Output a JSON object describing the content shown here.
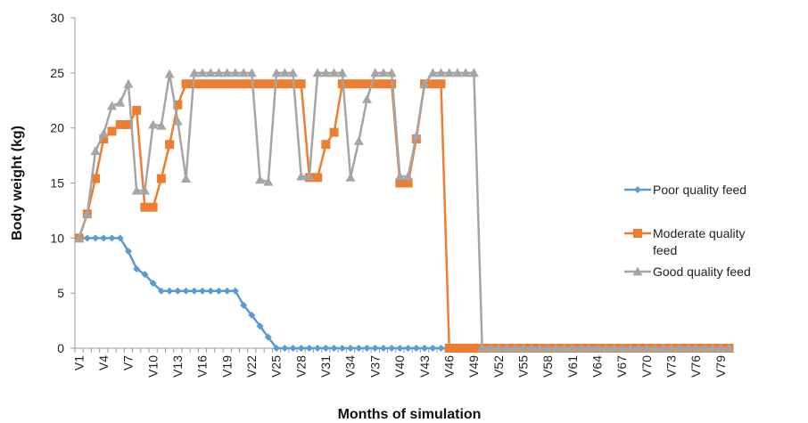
{
  "chart_data": {
    "type": "line",
    "xlabel": "Months of simulation",
    "ylabel": "Body weight (kg)",
    "ylim": [
      0,
      30
    ],
    "yticks": [
      0,
      5,
      10,
      15,
      20,
      25,
      30
    ],
    "grid": false,
    "legend_position": "right",
    "x": [
      "V1",
      "V2",
      "V3",
      "V4",
      "V5",
      "V6",
      "V7",
      "V8",
      "V9",
      "V10",
      "V11",
      "V12",
      "V13",
      "V14",
      "V15",
      "V16",
      "V17",
      "V18",
      "V19",
      "V20",
      "V21",
      "V22",
      "V23",
      "V24",
      "V25",
      "V26",
      "V27",
      "V28",
      "V29",
      "V30",
      "V31",
      "V32",
      "V33",
      "V34",
      "V35",
      "V36",
      "V37",
      "V38",
      "V39",
      "V40",
      "V41",
      "V42",
      "V43",
      "V44",
      "V45",
      "V46",
      "V47",
      "V48",
      "V49",
      "V50",
      "V51",
      "V52",
      "V53",
      "V54",
      "V55",
      "V56",
      "V57",
      "V58",
      "V59",
      "V60",
      "V61",
      "V62",
      "V63",
      "V64",
      "V65",
      "V66",
      "V67",
      "V68",
      "V69",
      "V70",
      "V71",
      "V72",
      "V73",
      "V74",
      "V75",
      "V76",
      "V77",
      "V78",
      "V79",
      "V80"
    ],
    "xtick_labels": [
      "V1",
      "V4",
      "V7",
      "V10",
      "V13",
      "V16",
      "V19",
      "V22",
      "V25",
      "V28",
      "V31",
      "V34",
      "V37",
      "V40",
      "V43",
      "V46",
      "V49",
      "V52",
      "V55",
      "V58",
      "V61",
      "V64",
      "V67",
      "V70",
      "V73",
      "V76",
      "V79"
    ],
    "series": [
      {
        "name": "Poor quality feed",
        "color": "#5b9bd5",
        "marker": "diamond",
        "values": [
          10,
          10,
          10,
          10,
          10,
          10,
          8.8,
          7.2,
          6.7,
          5.9,
          5.2,
          5.2,
          5.2,
          5.2,
          5.2,
          5.2,
          5.2,
          5.2,
          5.2,
          5.2,
          3.9,
          3,
          2,
          1,
          0,
          0,
          0,
          0,
          0,
          0,
          0,
          0,
          0,
          0,
          0,
          0,
          0,
          0,
          0,
          0,
          0,
          0,
          0,
          0,
          0,
          0,
          0,
          0,
          0,
          0,
          0,
          0,
          0,
          0,
          0,
          0,
          0,
          0,
          0,
          0,
          0,
          0,
          0,
          0,
          0,
          0,
          0,
          0,
          0,
          0,
          0,
          0,
          0,
          0,
          0,
          0,
          0,
          0,
          0,
          0
        ]
      },
      {
        "name": "Moderate quality feed",
        "color": "#ed7d31",
        "marker": "square",
        "values": [
          10,
          12.2,
          15.4,
          19,
          19.7,
          20.3,
          20.3,
          21.6,
          12.8,
          12.8,
          15.4,
          18.5,
          22.1,
          24,
          24,
          24,
          24,
          24,
          24,
          24,
          24,
          24,
          24,
          24,
          24,
          24,
          24,
          24,
          15.5,
          15.5,
          18.5,
          19.6,
          24,
          24,
          24,
          24,
          24,
          24,
          24,
          15,
          15,
          19,
          24,
          24,
          24,
          0,
          0,
          0,
          0,
          0,
          0,
          0,
          0,
          0,
          0,
          0,
          0,
          0,
          0,
          0,
          0,
          0,
          0,
          0,
          0,
          0,
          0,
          0,
          0,
          0,
          0,
          0,
          0,
          0,
          0,
          0,
          0,
          0,
          0,
          0
        ]
      },
      {
        "name": "Good quality feed",
        "color": "#a5a5a5",
        "marker": "triangle",
        "values": [
          10,
          12.2,
          17.9,
          19.5,
          22,
          22.3,
          24,
          14.3,
          14.3,
          20.3,
          20.2,
          24.9,
          20.6,
          15.4,
          25,
          25,
          25,
          25,
          25,
          25,
          25,
          25,
          15.3,
          15.1,
          25,
          25,
          25,
          15.6,
          15.6,
          25,
          25,
          25,
          25,
          15.5,
          18.8,
          22.6,
          25,
          25,
          25,
          15.6,
          15.6,
          19.3,
          24,
          25,
          25,
          25,
          25,
          25,
          25,
          0,
          0,
          0,
          0,
          0,
          0,
          0,
          0,
          0,
          0,
          0,
          0,
          0,
          0,
          0,
          0,
          0,
          0,
          0,
          0,
          0,
          0,
          0,
          0,
          0,
          0,
          0,
          0,
          0,
          0,
          0
        ]
      }
    ]
  }
}
